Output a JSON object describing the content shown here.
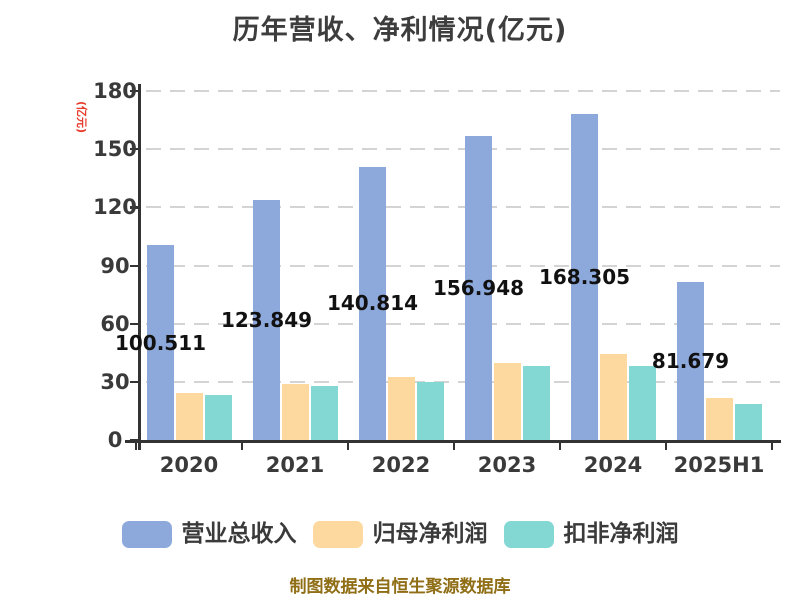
{
  "title": "历年营收、净利情况(亿元)",
  "y_axis_label": "(亿元)",
  "footer": "制图数据来自恒生聚源数据库",
  "colors": {
    "background": "#ffffff",
    "title_text": "#3d3d3d",
    "axis": "#333333",
    "tick_label": "#3a3a3a",
    "gridline": "#d4d4d4",
    "value_label": "#111111",
    "y_axis_label": "#e73b2b",
    "footer_text": "#8f6e16"
  },
  "chart_data": {
    "type": "bar",
    "title": "历年营收、净利情况(亿元)",
    "ylabel": "(亿元)",
    "categories": [
      "2020",
      "2021",
      "2022",
      "2023",
      "2024",
      "2025H1"
    ],
    "series": [
      {
        "name": "营业总收入",
        "color": "#8DA9DB",
        "values": [
          100.511,
          123.849,
          140.814,
          156.948,
          168.305,
          81.679
        ],
        "value_labels": [
          "100.511",
          "123.849",
          "140.814",
          "156.948",
          "168.305",
          "81.679"
        ]
      },
      {
        "name": "归母净利润",
        "color": "#FDD89F",
        "values": [
          24.1,
          29.0,
          32.3,
          39.8,
          44.5,
          21.5
        ]
      },
      {
        "name": "扣非净利润",
        "color": "#84D8D4",
        "values": [
          23.0,
          27.6,
          29.7,
          38.1,
          38.4,
          18.8
        ]
      }
    ],
    "ylim": [
      0,
      180
    ],
    "yticks": [
      0,
      30,
      60,
      90,
      120,
      150,
      180
    ],
    "grid": "horizontal-dashed",
    "legend_position": "bottom"
  }
}
